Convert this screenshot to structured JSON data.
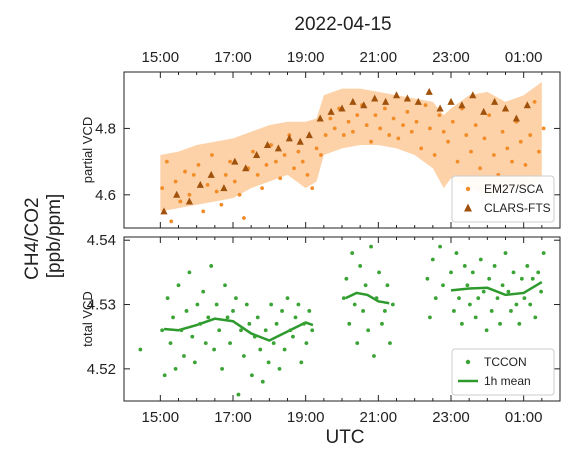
{
  "figure": {
    "date_title": "2022-04-15",
    "shared_ylabel_line1": "CH4/CO2",
    "shared_ylabel_line2": "[ppb/ppm]",
    "xlabel": "UTC"
  },
  "chart_data": [
    {
      "type": "scatter",
      "panel": "top",
      "ylabel": "partial VCD",
      "xlim": [
        14.0,
        26.0
      ],
      "ylim": [
        4.5,
        4.97
      ],
      "x_ticks": [
        15,
        17,
        19,
        21,
        23,
        25
      ],
      "x_tick_labels_top": [
        "15:00",
        "17:00",
        "19:00",
        "21:00",
        "23:00",
        "01:00"
      ],
      "y_ticks": [
        4.6,
        4.8
      ],
      "y_tick_labels": [
        "4.6",
        "4.8"
      ],
      "grid": false,
      "legend_position": "bottom-right",
      "series": [
        {
          "name": "EM27/SCA",
          "marker": "circle",
          "color": "#f28c28",
          "x": [
            15.05,
            15.18,
            15.3,
            15.42,
            15.55,
            15.68,
            15.8,
            15.92,
            16.05,
            16.18,
            16.3,
            16.42,
            16.55,
            16.68,
            16.8,
            16.92,
            17.05,
            17.18,
            17.3,
            17.42,
            17.55,
            17.68,
            17.8,
            17.92,
            18.05,
            18.18,
            18.3,
            18.42,
            18.55,
            18.68,
            18.8,
            18.92,
            19.05,
            19.18,
            19.3,
            19.42,
            19.55,
            19.68,
            19.8,
            19.92,
            20.05,
            20.18,
            20.3,
            20.42,
            20.55,
            20.68,
            20.8,
            20.92,
            21.05,
            21.18,
            21.3,
            21.42,
            21.55,
            21.68,
            21.8,
            21.92,
            22.05,
            22.18,
            22.3,
            22.42,
            22.55,
            22.68,
            22.8,
            22.92,
            23.05,
            23.18,
            23.3,
            23.42,
            23.55,
            23.68,
            23.8,
            23.92,
            24.05,
            24.18,
            24.3,
            24.42,
            24.55,
            24.68,
            24.8,
            24.92,
            25.05,
            25.18,
            25.3,
            25.42,
            25.55
          ],
          "y": [
            4.62,
            4.7,
            4.52,
            4.64,
            4.58,
            4.67,
            4.6,
            4.66,
            4.69,
            4.55,
            4.63,
            4.72,
            4.61,
            4.57,
            4.66,
            4.7,
            4.64,
            4.6,
            4.53,
            4.68,
            4.73,
            4.66,
            4.62,
            4.69,
            4.75,
            4.7,
            4.65,
            4.72,
            4.78,
            4.68,
            4.73,
            4.7,
            4.66,
            4.62,
            4.74,
            4.72,
            4.78,
            4.83,
            4.8,
            4.86,
            4.78,
            4.82,
            4.79,
            4.84,
            4.87,
            4.81,
            4.76,
            4.84,
            4.8,
            4.86,
            4.78,
            4.83,
            4.77,
            4.81,
            4.85,
            4.79,
            4.82,
            4.74,
            4.87,
            4.8,
            4.72,
            4.84,
            4.79,
            4.76,
            4.82,
            4.7,
            4.86,
            4.78,
            4.73,
            4.81,
            4.68,
            4.77,
            4.84,
            4.72,
            4.66,
            4.79,
            4.74,
            4.7,
            4.82,
            4.76,
            4.69,
            4.78,
            4.88,
            4.73,
            4.8
          ]
        },
        {
          "name": "CLARS-FTS",
          "marker": "triangle",
          "color": "#a0520d",
          "x": [
            15.1,
            15.45,
            15.8,
            16.1,
            16.4,
            16.75,
            17.05,
            17.35,
            17.65,
            17.95,
            18.25,
            18.55,
            18.85,
            19.1,
            19.4,
            19.7,
            20.0,
            20.3,
            20.6,
            20.9,
            21.2,
            21.5,
            21.8,
            22.1,
            22.4,
            22.7,
            23.0,
            23.3,
            23.6,
            23.9,
            24.2,
            24.5,
            24.8,
            25.1
          ],
          "y": [
            4.55,
            4.6,
            4.58,
            4.63,
            4.66,
            4.62,
            4.7,
            4.68,
            4.72,
            4.75,
            4.74,
            4.77,
            4.76,
            4.78,
            4.83,
            4.85,
            4.86,
            4.88,
            4.87,
            4.89,
            4.88,
            4.9,
            4.89,
            4.88,
            4.91,
            4.86,
            4.88,
            4.87,
            4.9,
            4.85,
            4.88,
            4.86,
            4.83,
            4.87
          ]
        }
      ],
      "uncertainty_band": {
        "x": [
          15.0,
          15.5,
          16.0,
          16.5,
          17.0,
          17.5,
          18.0,
          18.5,
          19.0,
          19.3,
          19.5,
          20.0,
          20.5,
          21.0,
          21.5,
          22.0,
          22.5,
          22.8,
          23.0,
          23.5,
          24.0,
          24.5,
          25.0,
          25.5
        ],
        "lower": [
          4.55,
          4.56,
          4.57,
          4.58,
          4.59,
          4.62,
          4.64,
          4.66,
          4.62,
          4.64,
          4.72,
          4.74,
          4.75,
          4.75,
          4.74,
          4.72,
          4.68,
          4.62,
          4.65,
          4.62,
          4.6,
          4.61,
          4.62,
          4.65
        ],
        "upper": [
          4.72,
          4.73,
          4.75,
          4.76,
          4.77,
          4.79,
          4.81,
          4.82,
          4.82,
          4.83,
          4.9,
          4.92,
          4.92,
          4.91,
          4.9,
          4.89,
          4.88,
          4.84,
          4.86,
          4.9,
          4.91,
          4.88,
          4.9,
          4.94
        ],
        "color": "#fdd2a8"
      }
    },
    {
      "type": "scatter",
      "panel": "bottom",
      "ylabel": "total VCD",
      "xlim": [
        14.0,
        26.0
      ],
      "ylim": [
        4.515,
        4.5405
      ],
      "x_ticks": [
        15,
        17,
        19,
        21,
        23,
        25
      ],
      "x_tick_labels": [
        "15:00",
        "17:00",
        "19:00",
        "21:00",
        "23:00",
        "01:00"
      ],
      "y_ticks": [
        4.52,
        4.53,
        4.54
      ],
      "y_tick_labels": [
        "4.52",
        "4.53",
        "4.54"
      ],
      "grid": false,
      "legend_position": "bottom-right",
      "series": [
        {
          "name": "TCCON",
          "marker": "circle",
          "color": "#3aa335",
          "x": [
            14.45,
            15.05,
            15.12,
            15.2,
            15.28,
            15.35,
            15.42,
            15.5,
            15.58,
            15.65,
            15.72,
            15.8,
            15.88,
            15.95,
            16.02,
            16.1,
            16.18,
            16.25,
            16.32,
            16.4,
            16.48,
            16.55,
            16.62,
            16.7,
            16.78,
            16.85,
            16.92,
            17.0,
            17.08,
            17.15,
            17.22,
            17.3,
            17.38,
            17.45,
            17.52,
            17.6,
            17.68,
            17.75,
            17.82,
            17.9,
            17.98,
            18.05,
            18.12,
            18.2,
            18.28,
            18.35,
            18.42,
            18.5,
            18.58,
            18.65,
            18.72,
            18.8,
            18.88,
            18.95,
            19.02,
            19.1,
            19.18,
            20.05,
            20.12,
            20.2,
            20.28,
            20.35,
            20.42,
            20.5,
            20.58,
            20.65,
            20.72,
            20.8,
            20.88,
            20.95,
            21.02,
            21.1,
            21.18,
            21.25,
            21.32,
            21.4,
            22.35,
            22.42,
            22.5,
            22.58,
            22.7,
            22.78,
            23.0,
            23.08,
            23.15,
            23.22,
            23.3,
            23.38,
            23.45,
            23.52,
            23.6,
            23.68,
            23.75,
            23.82,
            23.9,
            23.98,
            24.05,
            24.12,
            24.2,
            24.28,
            24.35,
            24.42,
            24.5,
            24.58,
            24.65,
            24.72,
            24.8,
            24.88,
            24.95,
            25.02,
            25.1,
            25.18,
            25.25,
            25.32,
            25.4,
            25.48,
            25.55
          ],
          "y": [
            4.523,
            4.526,
            4.519,
            4.531,
            4.524,
            4.528,
            4.52,
            4.533,
            4.526,
            4.522,
            4.529,
            4.535,
            4.525,
            4.521,
            4.53,
            4.527,
            4.532,
            4.524,
            4.528,
            4.536,
            4.523,
            4.53,
            4.526,
            4.52,
            4.533,
            4.528,
            4.524,
            4.529,
            4.531,
            4.516,
            4.526,
            4.522,
            4.53,
            4.527,
            4.519,
            4.525,
            4.528,
            4.523,
            4.518,
            4.526,
            4.521,
            4.53,
            4.524,
            4.527,
            4.52,
            4.529,
            4.523,
            4.531,
            4.526,
            4.525,
            4.528,
            4.53,
            4.521,
            4.527,
            4.524,
            4.529,
            4.526,
            4.531,
            4.534,
            4.527,
            4.538,
            4.53,
            4.524,
            4.536,
            4.529,
            4.533,
            4.526,
            4.539,
            4.522,
            4.531,
            4.535,
            4.527,
            4.529,
            4.533,
            4.524,
            4.53,
            4.534,
            4.528,
            4.537,
            4.531,
            4.539,
            4.533,
            4.535,
            4.529,
            4.538,
            4.531,
            4.527,
            4.536,
            4.533,
            4.53,
            4.535,
            4.528,
            4.531,
            4.537,
            4.532,
            4.526,
            4.534,
            4.529,
            4.536,
            4.531,
            4.527,
            4.533,
            4.538,
            4.532,
            4.529,
            4.535,
            4.53,
            4.527,
            4.534,
            4.531,
            4.536,
            4.53,
            4.534,
            4.528,
            4.535,
            4.532,
            4.538
          ]
        },
        {
          "name": "1h mean",
          "marker": "line",
          "color": "#2e9a2e",
          "x": [
            15.1,
            15.5,
            16.0,
            16.5,
            17.0,
            17.5,
            18.0,
            18.5,
            19.0,
            19.2
          ],
          "y": [
            4.5262,
            4.526,
            4.5268,
            4.5278,
            4.5274,
            4.5255,
            4.5244,
            4.5258,
            4.5272,
            4.5268
          ]
        },
        {
          "name": "",
          "marker": "line",
          "color": "#2e9a2e",
          "x": [
            20.1,
            20.4,
            20.7,
            21.0,
            21.3
          ],
          "y": [
            4.531,
            4.5318,
            4.5315,
            4.5305,
            4.5302
          ]
        },
        {
          "name": "",
          "marker": "line",
          "color": "#2e9a2e",
          "x": [
            23.0,
            23.5,
            24.0,
            24.5,
            25.0,
            25.5
          ],
          "y": [
            4.5322,
            4.5325,
            4.5326,
            4.5315,
            4.5318,
            4.5335
          ]
        }
      ]
    }
  ]
}
